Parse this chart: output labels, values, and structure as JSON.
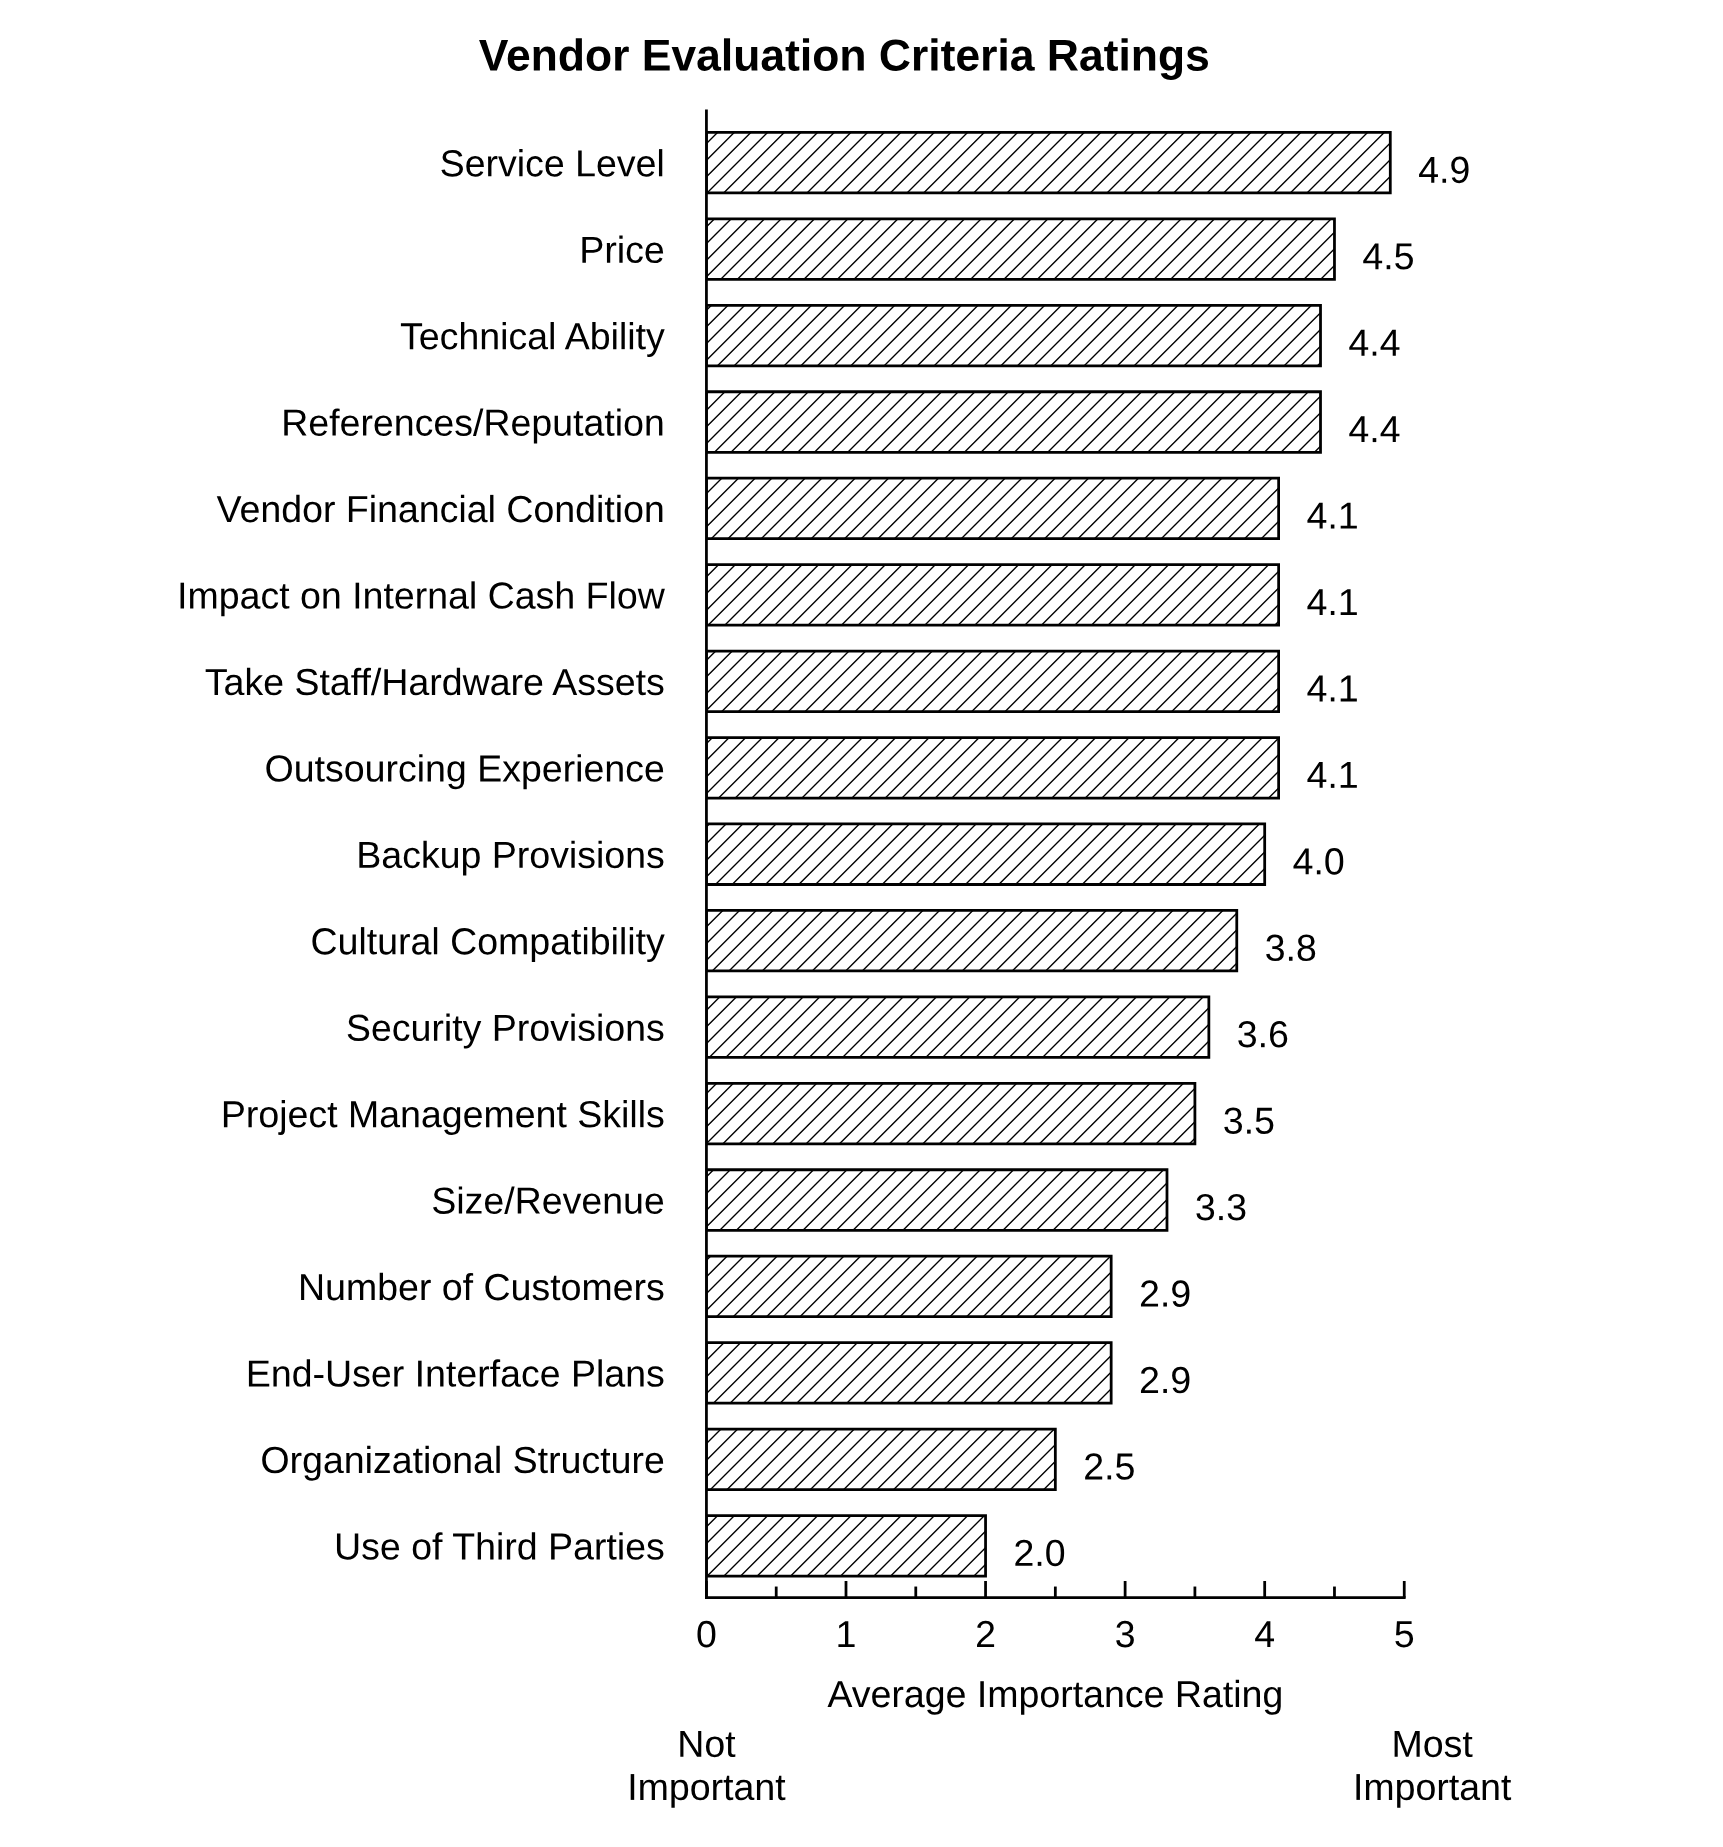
{
  "chart_data": {
    "type": "bar",
    "orientation": "horizontal",
    "title": "Vendor Evaluation Criteria Ratings",
    "xlabel": "Average Importance Rating",
    "categories": [
      "Service Level",
      "Price",
      "Technical Ability",
      "References/Reputation",
      "Vendor Financial Condition",
      "Impact on Internal Cash Flow",
      "Take Staff/Hardware Assets",
      "Outsourcing Experience",
      "Backup Provisions",
      "Cultural Compatibility",
      "Security Provisions",
      "Project Management Skills",
      "Size/Revenue",
      "Number of Customers",
      "End-User Interface Plans",
      "Organizational Structure",
      "Use of Third Parties"
    ],
    "values": [
      4.9,
      4.5,
      4.4,
      4.4,
      4.1,
      4.1,
      4.1,
      4.1,
      4.0,
      3.8,
      3.6,
      3.5,
      3.3,
      2.9,
      2.9,
      2.5,
      2.0
    ],
    "value_labels": [
      "4.9",
      "4.5",
      "4.4",
      "4.4",
      "4.1",
      "4.1",
      "4.1",
      "4.1",
      "4.0",
      "3.8",
      "3.6",
      "3.5",
      "3.3",
      "2.9",
      "2.9",
      "2.5",
      "2.0"
    ],
    "color": "#000000",
    "xlim": [
      0,
      5
    ],
    "xticks": [
      0,
      {
        "value": 0.5,
        "label": null
      },
      1,
      {
        "value": 1.5,
        "label": null
      },
      2,
      {
        "value": 2.5,
        "label": null
      },
      3,
      {
        "value": 3.5,
        "label": null
      },
      4,
      {
        "value": 4.5,
        "label": null
      },
      5
    ],
    "grid": false,
    "legend": false,
    "annotations": [
      "Not\nImportant",
      "Most\nImportant"
    ]
  }
}
